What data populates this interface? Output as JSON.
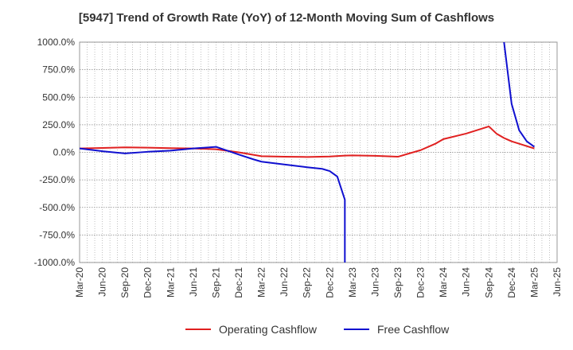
{
  "chart_data": {
    "type": "line",
    "title": "[5947]  Trend of Growth Rate (YoY) of 12-Month Moving Sum of Cashflows",
    "xlabel": "",
    "ylabel": "",
    "ylim": [
      -1000,
      1000
    ],
    "y_ticks": [
      1000,
      750,
      500,
      250,
      0,
      -250,
      -500,
      -750,
      -1000
    ],
    "y_tick_labels": [
      "1000.0%",
      "750.0%",
      "500.0%",
      "250.0%",
      "0.0%",
      "-250.0%",
      "-500.0%",
      "-750.0%",
      "-1000.0%"
    ],
    "x_categories": [
      "Mar-20",
      "Jun-20",
      "Sep-20",
      "Dec-20",
      "Mar-21",
      "Jun-21",
      "Sep-21",
      "Dec-21",
      "Mar-22",
      "Jun-22",
      "Sep-22",
      "Dec-22",
      "Mar-23",
      "Jun-23",
      "Sep-23",
      "Dec-23",
      "Mar-24",
      "Jun-24",
      "Sep-24",
      "Dec-24",
      "Mar-25",
      "Jun-25"
    ],
    "grid": true,
    "legend_position": "bottom",
    "series": [
      {
        "name": "Operating Cashflow",
        "color": "#e02020",
        "points": [
          [
            "Mar-20",
            35
          ],
          [
            "Jun-20",
            40
          ],
          [
            "Sep-20",
            45
          ],
          [
            "Dec-20",
            42
          ],
          [
            "Mar-21",
            38
          ],
          [
            "Jun-21",
            35
          ],
          [
            "Sep-21",
            28
          ],
          [
            "Dec-21",
            0
          ],
          [
            "Mar-22",
            -35
          ],
          [
            "Jun-22",
            -40
          ],
          [
            "Sep-22",
            -42
          ],
          [
            "Dec-22",
            -38
          ],
          [
            "Feb-23",
            -30
          ],
          [
            "Mar-23",
            -28
          ],
          [
            "Jun-23",
            -32
          ],
          [
            "Sep-23",
            -40
          ],
          [
            "Dec-23",
            20
          ],
          [
            "Feb-24",
            80
          ],
          [
            "Mar-24",
            120
          ],
          [
            "Jun-24",
            170
          ],
          [
            "Sep-24",
            235
          ],
          [
            "Oct-24",
            170
          ],
          [
            "Nov-24",
            130
          ],
          [
            "Dec-24",
            100
          ],
          [
            "Mar-25",
            35
          ]
        ]
      },
      {
        "name": "Free Cashflow",
        "color": "#1010d0",
        "points": [
          [
            "Mar-20",
            35
          ],
          [
            "Jun-20",
            10
          ],
          [
            "Sep-20",
            -10
          ],
          [
            "Dec-20",
            5
          ],
          [
            "Mar-21",
            15
          ],
          [
            "Jun-21",
            35
          ],
          [
            "Sep-21",
            50
          ],
          [
            "Dec-21",
            -20
          ],
          [
            "Feb-22",
            -65
          ],
          [
            "Mar-22",
            -85
          ],
          [
            "Jun-22",
            -110
          ],
          [
            "Sep-22",
            -135
          ],
          [
            "Nov-22",
            -150
          ],
          [
            "Dec-22",
            -170
          ],
          [
            "Jan-23",
            -220
          ],
          [
            "Feb-23",
            -430
          ],
          [
            "Feb-23",
            -1000
          ]
        ]
      },
      {
        "name": "Free Cashflow",
        "color": "#1010d0",
        "points": [
          [
            "Nov-24",
            1000
          ],
          [
            "Dec-24",
            440
          ],
          [
            "Jan-25",
            200
          ],
          [
            "Feb-25",
            100
          ],
          [
            "Mar-25",
            50
          ]
        ]
      }
    ],
    "legend": [
      {
        "label": "Operating Cashflow",
        "color": "#e02020"
      },
      {
        "label": "Free Cashflow",
        "color": "#1010d0"
      }
    ]
  }
}
